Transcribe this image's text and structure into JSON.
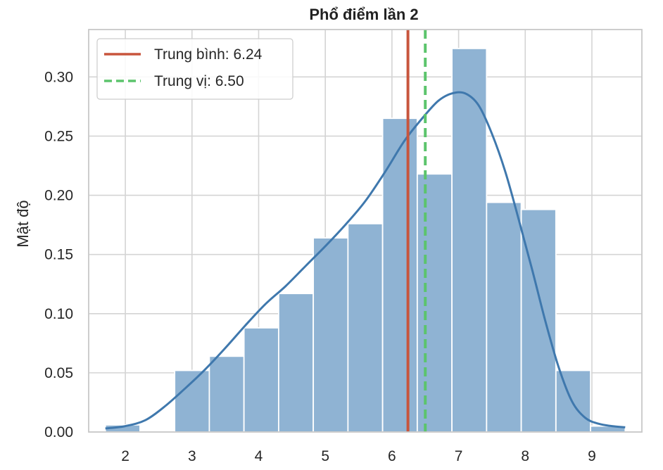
{
  "chart_data": {
    "type": "bar",
    "title": "Phổ điểm lần 2",
    "xlabel": "",
    "ylabel": "Mật độ",
    "xlim": [
      1.45,
      9.75
    ],
    "ylim": [
      0,
      0.34
    ],
    "xticks": [
      2,
      3,
      4,
      5,
      6,
      7,
      8,
      9
    ],
    "yticks": [
      0.0,
      0.05,
      0.1,
      0.15,
      0.2,
      0.25,
      0.3
    ],
    "grid": true,
    "legend_position": "top-left",
    "bins": [
      {
        "x0": 1.7,
        "x1": 2.22,
        "density": 0.006
      },
      {
        "x0": 2.22,
        "x1": 2.74,
        "density": 0.0
      },
      {
        "x0": 2.74,
        "x1": 3.26,
        "density": 0.052
      },
      {
        "x0": 3.26,
        "x1": 3.78,
        "density": 0.064
      },
      {
        "x0": 3.78,
        "x1": 4.3,
        "density": 0.088
      },
      {
        "x0": 4.3,
        "x1": 4.82,
        "density": 0.117
      },
      {
        "x0": 4.82,
        "x1": 5.34,
        "density": 0.164
      },
      {
        "x0": 5.34,
        "x1": 5.86,
        "density": 0.176
      },
      {
        "x0": 5.86,
        "x1": 6.38,
        "density": 0.265
      },
      {
        "x0": 6.38,
        "x1": 6.9,
        "density": 0.218
      },
      {
        "x0": 6.9,
        "x1": 7.42,
        "density": 0.324
      },
      {
        "x0": 7.42,
        "x1": 7.94,
        "density": 0.194
      },
      {
        "x0": 7.94,
        "x1": 8.46,
        "density": 0.188
      },
      {
        "x0": 8.46,
        "x1": 8.98,
        "density": 0.052
      },
      {
        "x0": 8.98,
        "x1": 9.5,
        "density": 0.005
      }
    ],
    "kde": {
      "x": [
        1.7,
        2.0,
        2.3,
        2.6,
        2.9,
        3.2,
        3.5,
        3.8,
        4.1,
        4.4,
        4.7,
        5.0,
        5.3,
        5.6,
        5.9,
        6.2,
        6.5,
        6.7,
        6.9,
        7.1,
        7.3,
        7.5,
        7.7,
        7.9,
        8.1,
        8.3,
        8.5,
        8.7,
        8.9,
        9.1,
        9.3,
        9.5
      ],
      "y": [
        0.003,
        0.005,
        0.01,
        0.022,
        0.037,
        0.053,
        0.071,
        0.09,
        0.108,
        0.123,
        0.14,
        0.157,
        0.175,
        0.195,
        0.22,
        0.247,
        0.268,
        0.28,
        0.286,
        0.286,
        0.276,
        0.252,
        0.22,
        0.18,
        0.138,
        0.094,
        0.055,
        0.026,
        0.012,
        0.007,
        0.005,
        0.004
      ]
    },
    "mean": {
      "label": "Trung bình: 6.24",
      "value": 6.24
    },
    "median": {
      "label": "Trung vị: 6.50",
      "value": 6.5
    },
    "colors": {
      "bar_fill": "#8fb3d3",
      "bar_edge": "#ffffff",
      "kde_line": "#3f78ad",
      "mean_line": "#c8553d",
      "median_line": "#5cc46c",
      "grid": "#d4d4d4",
      "frame": "#c8c8c8"
    }
  }
}
